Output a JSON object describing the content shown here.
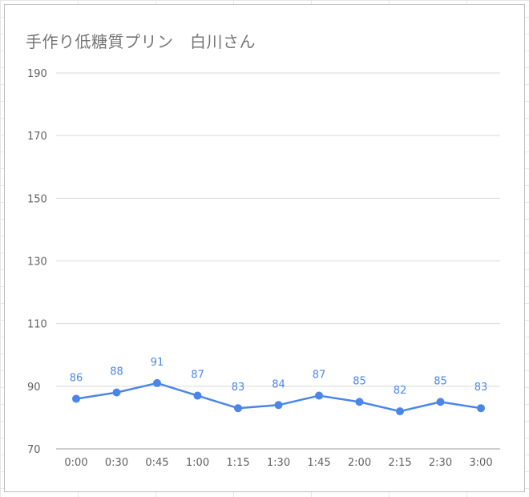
{
  "chart_data": {
    "type": "line",
    "title": "手作り低糖質プリン　白川さん",
    "categories": [
      "0:00",
      "0:30",
      "0:45",
      "1:00",
      "1:15",
      "1:30",
      "1:45",
      "2:00",
      "2:15",
      "2:30",
      "3:00"
    ],
    "series": [
      {
        "values": [
          86,
          88,
          91,
          87,
          83,
          84,
          87,
          85,
          82,
          85,
          83
        ]
      }
    ],
    "ylim": [
      70,
      190
    ],
    "yticks": [
      70,
      90,
      110,
      130,
      150,
      170,
      190
    ],
    "grid": true,
    "data_labels": true,
    "colors": {
      "line": "#4a86e8",
      "grid": "#d9d9d9",
      "axis": "#9e9e9e"
    }
  }
}
